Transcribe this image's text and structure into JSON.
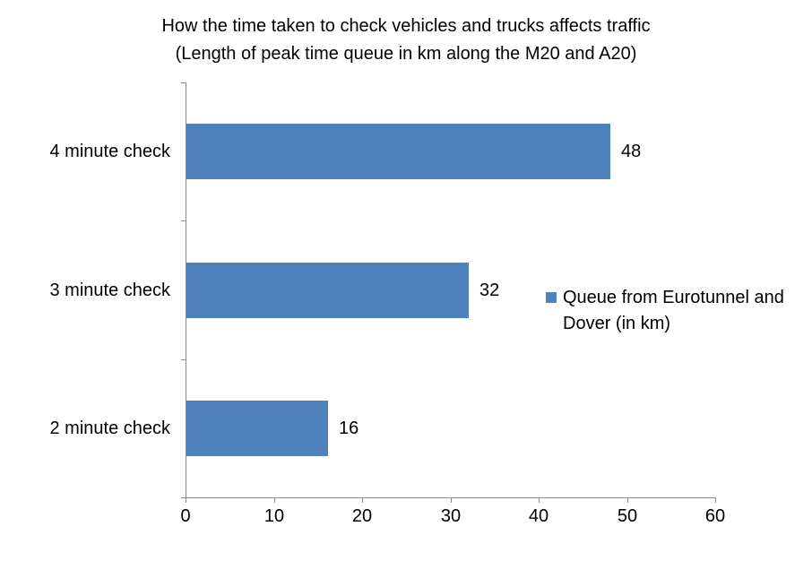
{
  "chart_data": {
    "type": "bar",
    "orientation": "horizontal",
    "title": "How the time taken to check vehicles and trucks affects traffic",
    "subtitle": "(Length of peak time queue in km along the M20 and A20)",
    "categories": [
      "4 minute check",
      "3 minute check",
      "2 minute check"
    ],
    "values": [
      48,
      32,
      16
    ],
    "data_labels": [
      "48",
      "32",
      "16"
    ],
    "series": [
      {
        "name": "Queue from Eurotunnel and Dover (in km)",
        "values": [
          48,
          32,
          16
        ]
      }
    ],
    "legend_label": "Queue from Eurotunnel and Dover (in km)",
    "legend_position": "right",
    "xlabel": "",
    "ylabel": "",
    "xlim": [
      0,
      60
    ],
    "xticks": [
      0,
      10,
      20,
      30,
      40,
      50,
      60
    ],
    "grid": false,
    "colors": {
      "bar": "#4F81BD",
      "axis": "#8A8A8A",
      "text": "#000000",
      "background": "#FFFFFF"
    }
  }
}
